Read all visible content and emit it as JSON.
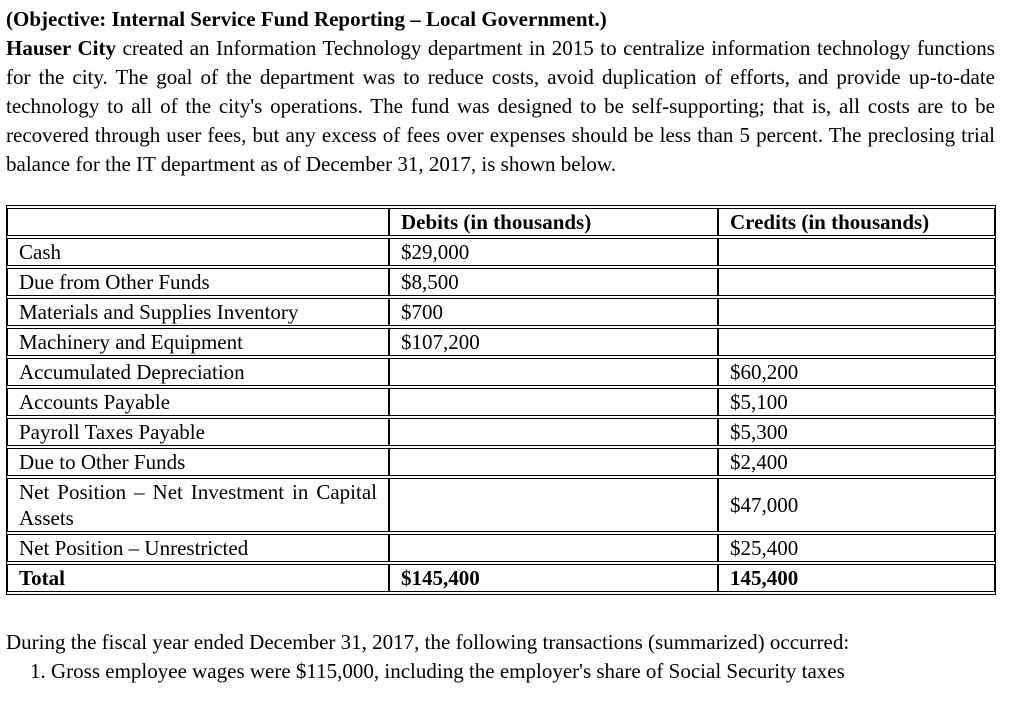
{
  "page": {
    "heading": "(Objective: Internal Service Fund Reporting – Local Government.)",
    "intro_lead": "Hauser City",
    "intro_rest": " created an Information Technology department in 2015 to centralize information technology functions for the city. The goal of the department was to reduce costs, avoid duplication of efforts, and provide up-to-date technology to all of the city's operations. The fund was designed to be self-supporting; that is, all costs are to be recovered through user fees, but any excess of fees over expenses should be less than 5 percent. The preclosing trial balance for the IT department as of December 31, 2017, is shown below.",
    "closing_paragraph": "During the fiscal year ended December 31, 2017, the following transactions (summarized) occurred:",
    "clipped_line": "1. Gross employee wages were $115,000, including the employer's share of Social Security taxes"
  },
  "table": {
    "headers": [
      "",
      "Debits (in thousands)",
      "Credits (in thousands)"
    ],
    "rows": [
      {
        "account": "Cash",
        "debit": "$29,000",
        "credit": "",
        "bold": false
      },
      {
        "account": "Due from Other Funds",
        "debit": "$8,500",
        "credit": "",
        "bold": false
      },
      {
        "account": "Materials and Supplies Inventory",
        "debit": "$700",
        "credit": "",
        "bold": false
      },
      {
        "account": "Machinery and Equipment",
        "debit": "$107,200",
        "credit": "",
        "bold": false
      },
      {
        "account": "Accumulated Depreciation",
        "debit": "",
        "credit": "$60,200",
        "bold": false
      },
      {
        "account": "Accounts Payable",
        "debit": "",
        "credit": "$5,100",
        "bold": false
      },
      {
        "account": "Payroll Taxes Payable",
        "debit": "",
        "credit": "$5,300",
        "bold": false
      },
      {
        "account": "Due to Other Funds",
        "debit": "",
        "credit": "$2,400",
        "bold": false
      },
      {
        "account": "Net Position – Net Investment in Capital Assets",
        "debit": "",
        "credit": "$47,000",
        "bold": false
      },
      {
        "account": "Net Position – Unrestricted",
        "debit": "",
        "credit": "$25,400",
        "bold": false
      },
      {
        "account": "Total",
        "debit": "$145,400",
        "credit": "145,400",
        "bold": true
      }
    ]
  },
  "colors": {
    "text": "#000000",
    "background": "#ffffff",
    "table_border": "#000000"
  }
}
